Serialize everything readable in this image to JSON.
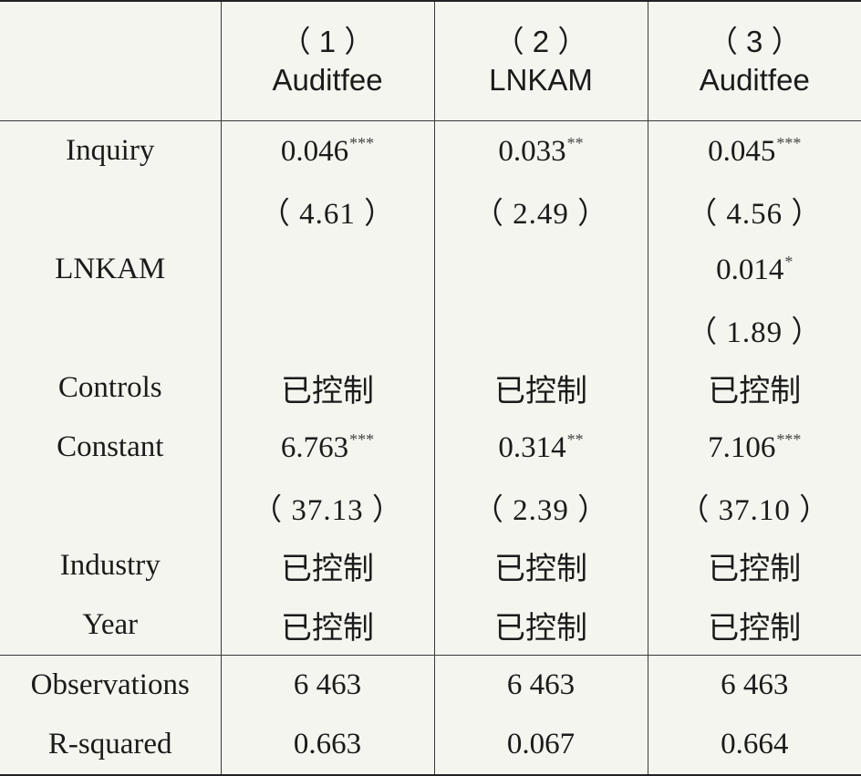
{
  "columns": [
    {
      "number": "（ 1 ）",
      "name": "Auditfee"
    },
    {
      "number": "（ 2 ）",
      "name": "LNKAM"
    },
    {
      "number": "（ 3 ）",
      "name": "Auditfee"
    }
  ],
  "rows": {
    "inquiry": {
      "label": "Inquiry",
      "c1": "0.046",
      "c1s": "***",
      "c2": "0.033",
      "c2s": "**",
      "c3": "0.045",
      "c3s": "***"
    },
    "inquiry_t": {
      "c1": "（ 4.61 ）",
      "c2": "（ 2.49 ）",
      "c3": "（ 4.56 ）"
    },
    "lnkam": {
      "label": "LNKAM",
      "c3": "0.014",
      "c3s": "*"
    },
    "lnkam_t": {
      "c3": "（ 1.89 ）"
    },
    "controls": {
      "label": "Controls",
      "c1": "已控制",
      "c2": "已控制",
      "c3": "已控制"
    },
    "constant": {
      "label": "Constant",
      "c1": "6.763",
      "c1s": "***",
      "c2": "0.314",
      "c2s": "**",
      "c3": "7.106",
      "c3s": "***"
    },
    "constant_t": {
      "c1": "（ 37.13 ）",
      "c2": "（ 2.39 ）",
      "c3": "（ 37.10 ）"
    },
    "industry": {
      "label": "Industry",
      "c1": "已控制",
      "c2": "已控制",
      "c3": "已控制"
    },
    "year": {
      "label": "Year",
      "c1": "已控制",
      "c2": "已控制",
      "c3": "已控制"
    },
    "observations": {
      "label": "Observations",
      "c1": "6 463",
      "c2": "6 463",
      "c3": "6 463"
    },
    "rsquared": {
      "label": "R-squared",
      "c1": "0.663",
      "c2": "0.067",
      "c3": "0.664"
    }
  }
}
